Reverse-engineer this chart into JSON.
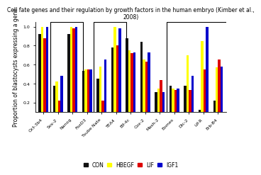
{
  "title": "Cell fate genes and their regulation by growth factors in the human embryo (Kimber et al.,\n2008)",
  "ylabel": "Proportion of blastocysts expressing a gene",
  "categories": [
    "Oct-3b4",
    "Sox-2",
    "Nanog",
    "FoxD3",
    "Tsube Nate",
    "TEA4",
    "Elf-4c",
    "Cox-2",
    "Mash-2",
    "Eomes",
    "Dlc-2",
    "Lif-R",
    "Erb-B4"
  ],
  "series": {
    "CON": [
      0.92,
      0.38,
      0.92,
      0.53,
      0.45,
      0.78,
      0.88,
      0.84,
      0.31,
      0.38,
      0.38,
      0.12,
      0.22
    ],
    "HBEGF": [
      1.0,
      0.42,
      1.0,
      0.55,
      0.58,
      1.0,
      0.75,
      0.65,
      0.35,
      0.35,
      0.7,
      0.85,
      0.57
    ],
    "LIF": [
      0.88,
      0.22,
      0.98,
      0.55,
      0.22,
      0.8,
      0.72,
      0.63,
      0.44,
      0.33,
      0.33,
      0.55,
      0.65
    ],
    "IGF1": [
      1.0,
      0.48,
      1.0,
      0.55,
      0.65,
      0.98,
      0.73,
      0.73,
      0.31,
      0.35,
      0.48,
      1.0,
      0.58
    ]
  },
  "colors": {
    "CON": "#111111",
    "HBEGF": "#ffff00",
    "LIF": "#dd0000",
    "IGF1": "#0000cc"
  },
  "ylim": [
    0.1,
    1.05
  ],
  "yticks": [
    0.2,
    0.4,
    0.6,
    0.8,
    1.0
  ],
  "bar_width": 0.17,
  "title_fontsize": 5.5,
  "axis_label_fontsize": 5.5,
  "tick_fontsize": 4.5,
  "legend_fontsize": 5.5
}
